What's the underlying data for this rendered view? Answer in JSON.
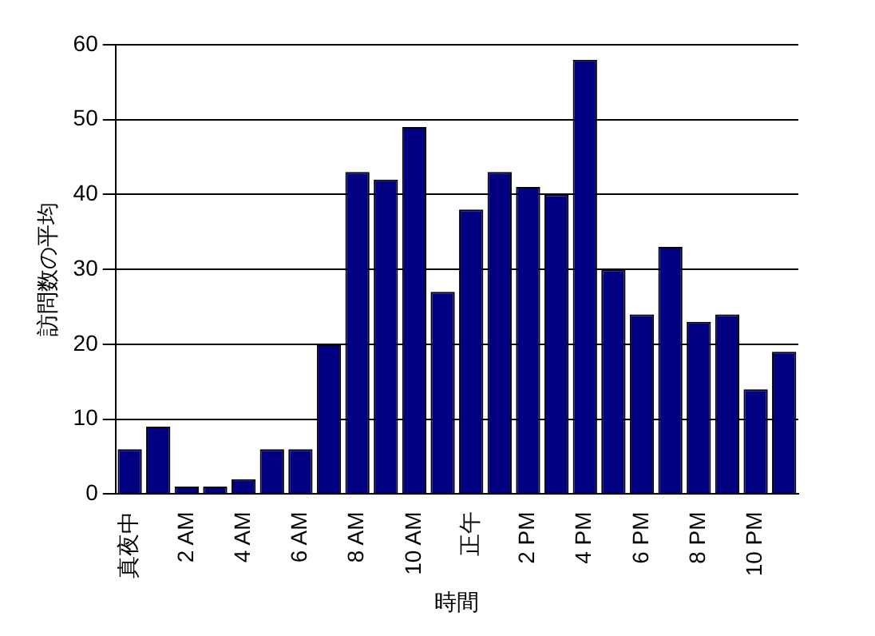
{
  "chart_data": {
    "type": "bar",
    "xlabel": "時間",
    "ylabel": "訪問数の平均",
    "categories": [
      "真夜中",
      null,
      "2 AM",
      null,
      "4 AM",
      null,
      "6 AM",
      null,
      "8 AM",
      null,
      "10 AM",
      null,
      "正午",
      null,
      "2 PM",
      null,
      "4 PM",
      null,
      "6 PM",
      null,
      "8 PM",
      null,
      "10 PM",
      null
    ],
    "values": [
      6,
      9,
      1,
      1,
      2,
      6,
      6,
      20,
      43,
      42,
      49,
      27,
      38,
      43,
      41,
      40,
      58,
      30,
      24,
      33,
      23,
      24,
      14,
      19
    ],
    "color": "#000080",
    "ylim": [
      0,
      60
    ],
    "yticks": [
      0,
      10,
      20,
      30,
      40,
      50,
      60
    ],
    "grid": "y"
  }
}
